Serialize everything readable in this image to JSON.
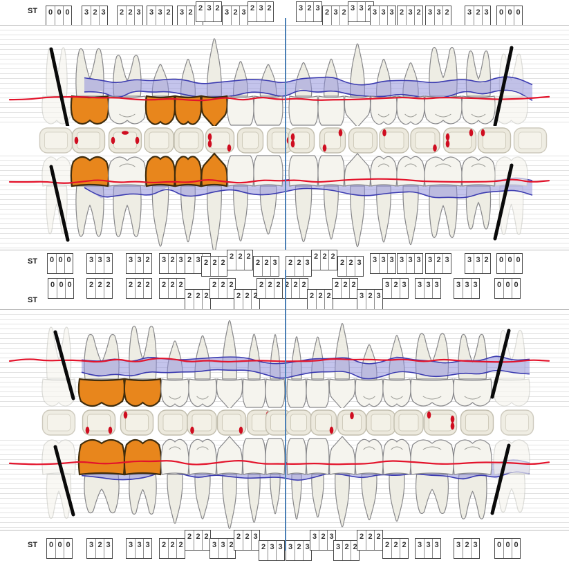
{
  "st_label": "ST",
  "colors": {
    "tooth_fill": "#f5f4ee",
    "root_fill": "#eeede4",
    "tooth_stroke": "#87878a",
    "ghost_stroke": "#c8c8c2",
    "ghost_fill": "#f6f5ef",
    "highlight_fill": "#e8861c",
    "highlight_stroke": "#402d0d",
    "band_fill": "#8d8ddb",
    "band_stroke": "#3b3bb0",
    "gingival_line": "#e3132b",
    "occlusal_fill": "#ece9dd",
    "occlusal_inner_fill": "#f3f1e7",
    "occlusal_stroke": "#c2beae",
    "bleeding_dot": "#cf0d20",
    "grid_line": "#e2e2e2",
    "midline": "#4a7fb5",
    "missing_mark": "#0a0a0a",
    "st_box_border": "#4a4a4a",
    "st_text": "#333333"
  },
  "upper": {
    "st_buccal": {
      "boxes": [
        {
          "v": "000",
          "lift": 0
        },
        {
          "v": "323",
          "lift": 0
        },
        {
          "v": "223",
          "lift": 0
        },
        {
          "v": "332",
          "lift": 0
        },
        {
          "v": "323",
          "lift": 0
        },
        {
          "v": "232",
          "lift": -1
        },
        {
          "v": "323",
          "lift": 0
        },
        {
          "v": "232",
          "lift": -1
        },
        {
          "v": "323",
          "lift": -1
        },
        {
          "v": "232",
          "lift": 0
        },
        {
          "v": "332",
          "lift": -1
        },
        {
          "v": "333",
          "lift": 0
        },
        {
          "v": "232",
          "lift": 0
        },
        {
          "v": "332",
          "lift": 0
        },
        {
          "v": "323",
          "lift": 0
        },
        {
          "v": "000",
          "lift": 0
        }
      ]
    },
    "st_palatal": {
      "boxes": [
        {
          "v": "000",
          "lift": 0
        },
        {
          "v": "333",
          "lift": 0
        },
        {
          "v": "332",
          "lift": 0
        },
        {
          "v": "323",
          "lift": 0
        },
        {
          "v": "232",
          "lift": 0
        },
        {
          "v": "222",
          "lift": 1
        },
        {
          "v": "222",
          "lift": -1
        },
        {
          "v": "223",
          "lift": 1
        },
        {
          "v": "223",
          "lift": 1
        },
        {
          "v": "222",
          "lift": -1
        },
        {
          "v": "223",
          "lift": 1
        },
        {
          "v": "333",
          "lift": 0
        },
        {
          "v": "333",
          "lift": 0
        },
        {
          "v": "323",
          "lift": 0
        },
        {
          "v": "332",
          "lift": 0
        },
        {
          "v": "000",
          "lift": 0
        }
      ]
    },
    "teeth": [
      {
        "type": "molar",
        "missing": true,
        "highlighted": false
      },
      {
        "type": "molar",
        "missing": false,
        "highlighted": true
      },
      {
        "type": "molar",
        "missing": false,
        "highlighted": false
      },
      {
        "type": "premolar",
        "missing": false,
        "highlighted": true
      },
      {
        "type": "premolar",
        "missing": false,
        "highlighted": true
      },
      {
        "type": "canine",
        "missing": false,
        "highlighted": true
      },
      {
        "type": "incisor",
        "missing": false,
        "highlighted": false
      },
      {
        "type": "incisor",
        "missing": false,
        "highlighted": false
      },
      {
        "type": "incisor",
        "missing": false,
        "highlighted": false
      },
      {
        "type": "incisor",
        "missing": false,
        "highlighted": false
      },
      {
        "type": "canine",
        "missing": false,
        "highlighted": false
      },
      {
        "type": "premolar",
        "missing": false,
        "highlighted": false
      },
      {
        "type": "premolar",
        "missing": false,
        "highlighted": false
      },
      {
        "type": "molar",
        "missing": false,
        "highlighted": false
      },
      {
        "type": "molar",
        "missing": false,
        "highlighted": false
      },
      {
        "type": "molar",
        "missing": true,
        "highlighted": false
      }
    ],
    "occlusal_dots": [
      [],
      [
        "L"
      ],
      [
        "L",
        "TH",
        "R"
      ],
      [],
      [],
      [
        "L2",
        "BR"
      ],
      [],
      [
        "R"
      ],
      [
        "L2"
      ],
      [
        "BL",
        "TR"
      ],
      [],
      [
        "TL"
      ],
      [
        "BR"
      ],
      [
        "L2",
        "TR"
      ],
      [
        "TL"
      ],
      []
    ]
  },
  "lower": {
    "st_buccal": {
      "boxes": [
        {
          "v": "000",
          "lift": 0
        },
        {
          "v": "222",
          "lift": 0
        },
        {
          "v": "222",
          "lift": 0
        },
        {
          "v": "222",
          "lift": 0
        },
        {
          "v": "222",
          "lift": 1
        },
        {
          "v": "222",
          "lift": 0
        },
        {
          "v": "222",
          "lift": 1
        },
        {
          "v": "222",
          "lift": 0
        },
        {
          "v": "222",
          "lift": 0
        },
        {
          "v": "222",
          "lift": 1
        },
        {
          "v": "222",
          "lift": 0
        },
        {
          "v": "323",
          "lift": 1
        },
        {
          "v": "323",
          "lift": 0
        },
        {
          "v": "333",
          "lift": 0
        },
        {
          "v": "333",
          "lift": 0
        },
        {
          "v": "000",
          "lift": 0
        }
      ]
    },
    "st_lingual": {
      "boxes": [
        {
          "v": "000",
          "lift": 0
        },
        {
          "v": "323",
          "lift": 0
        },
        {
          "v": "333",
          "lift": 0
        },
        {
          "v": "222",
          "lift": 0
        },
        {
          "v": "222",
          "lift": -1
        },
        {
          "v": "332",
          "lift": 0
        },
        {
          "v": "223",
          "lift": -1
        },
        {
          "v": "233",
          "lift": 1
        },
        {
          "v": "323",
          "lift": 1
        },
        {
          "v": "323",
          "lift": -1
        },
        {
          "v": "322",
          "lift": 1
        },
        {
          "v": "222",
          "lift": -1
        },
        {
          "v": "222",
          "lift": 0
        },
        {
          "v": "333",
          "lift": 0
        },
        {
          "v": "323",
          "lift": 0
        },
        {
          "v": "000",
          "lift": 0
        }
      ]
    },
    "teeth": [
      {
        "type": "molar",
        "missing": true,
        "highlighted": false
      },
      {
        "type": "molar",
        "missing": false,
        "highlighted": true
      },
      {
        "type": "molar",
        "missing": false,
        "highlighted": true
      },
      {
        "type": "premolar",
        "missing": false,
        "highlighted": false
      },
      {
        "type": "premolar",
        "missing": false,
        "highlighted": false
      },
      {
        "type": "canine",
        "missing": false,
        "highlighted": false
      },
      {
        "type": "incisor",
        "missing": false,
        "highlighted": false
      },
      {
        "type": "incisor",
        "missing": false,
        "highlighted": false
      },
      {
        "type": "incisor",
        "missing": false,
        "highlighted": false
      },
      {
        "type": "incisor",
        "missing": false,
        "highlighted": false
      },
      {
        "type": "canine",
        "missing": false,
        "highlighted": false
      },
      {
        "type": "premolar",
        "missing": false,
        "highlighted": false
      },
      {
        "type": "premolar",
        "missing": false,
        "highlighted": false
      },
      {
        "type": "molar",
        "missing": false,
        "highlighted": false
      },
      {
        "type": "molar",
        "missing": false,
        "highlighted": false
      },
      {
        "type": "molar",
        "missing": true,
        "highlighted": false
      }
    ],
    "occlusal_dots": [
      [],
      [
        "BL",
        "BR"
      ],
      [
        "TL"
      ],
      [],
      [
        "BL"
      ],
      [
        "BR"
      ],
      [
        "TR"
      ],
      [],
      [],
      [
        "BR"
      ],
      [
        "T"
      ],
      [],
      [],
      [
        "TL",
        "R2"
      ],
      [],
      []
    ]
  }
}
